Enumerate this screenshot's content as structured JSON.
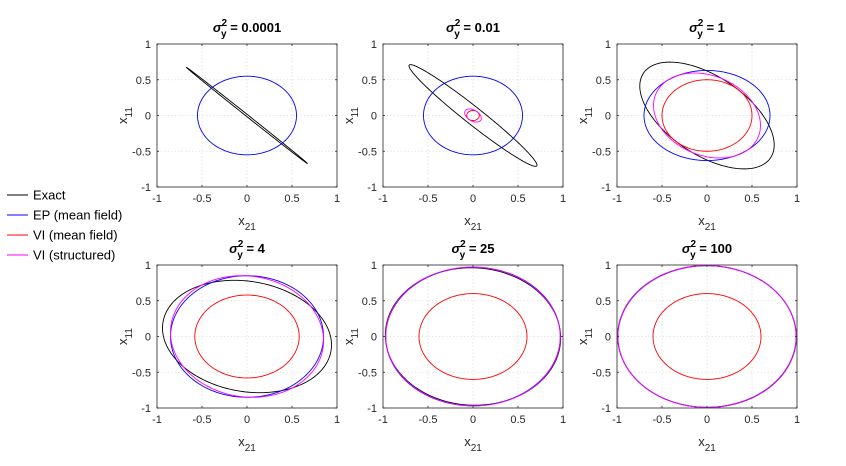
{
  "legend": {
    "placement": "left",
    "entries": [
      {
        "label": "Exact",
        "color": "#000000"
      },
      {
        "label": "EP (mean field)",
        "color": "#0000ff"
      },
      {
        "label": "VI (mean field)",
        "color": "#ff0000"
      },
      {
        "label": "VI (structured)",
        "color": "#ff00ff"
      }
    ]
  },
  "chart_data": [
    {
      "type": "line",
      "title": {
        "main": "σ",
        "sup": "2",
        "sub": "y",
        "rest": " = 0.0001"
      },
      "xlabel": {
        "main": "x",
        "sub": "21"
      },
      "ylabel": {
        "main": "x",
        "sub": "11"
      },
      "xlim": [
        -1,
        1
      ],
      "ylim": [
        -1,
        1
      ],
      "grid": true,
      "xticks": [
        "-1",
        "-0.5",
        "0",
        "0.5",
        "1"
      ],
      "yticks": [
        "-1",
        "-0.5",
        "0",
        "0.5",
        "1"
      ],
      "series": [
        {
          "name": "Exact",
          "color": "#000000",
          "ellipse": {
            "cx": 0,
            "cy": 0,
            "a": 0.95,
            "b": 0.012,
            "angle_deg": -45
          }
        },
        {
          "name": "EP (mean field)",
          "color": "#0000ff",
          "ellipse": {
            "cx": 0,
            "cy": 0,
            "a": 0.55,
            "b": 0.55,
            "angle_deg": 0
          }
        }
      ]
    },
    {
      "type": "line",
      "title": {
        "main": "σ",
        "sup": "2",
        "sub": "y",
        "rest": " = 0.01"
      },
      "xlabel": {
        "main": "x",
        "sub": "21"
      },
      "ylabel": {
        "main": "x",
        "sub": "11"
      },
      "xlim": [
        -1,
        1
      ],
      "ylim": [
        -1,
        1
      ],
      "grid": true,
      "xticks": [
        "-1",
        "-0.5",
        "0",
        "0.5",
        "1"
      ],
      "yticks": [
        "-1",
        "-0.5",
        "0",
        "0.5",
        "1"
      ],
      "series": [
        {
          "name": "Exact",
          "color": "#000000",
          "ellipse": {
            "cx": 0,
            "cy": 0,
            "a": 1.0,
            "b": 0.11,
            "angle_deg": -45
          }
        },
        {
          "name": "EP (mean field)",
          "color": "#0000ff",
          "ellipse": {
            "cx": 0,
            "cy": 0,
            "a": 0.55,
            "b": 0.55,
            "angle_deg": 0
          }
        },
        {
          "name": "VI (mean field)",
          "color": "#ff0000",
          "ellipse": {
            "cx": 0,
            "cy": 0,
            "a": 0.07,
            "b": 0.07,
            "angle_deg": 0
          }
        },
        {
          "name": "VI (structured)",
          "color": "#ff00ff",
          "ellipse": {
            "cx": 0,
            "cy": 0,
            "a": 0.11,
            "b": 0.07,
            "angle_deg": -45
          }
        }
      ]
    },
    {
      "type": "line",
      "title": {
        "main": "σ",
        "sup": "2",
        "sub": "y",
        "rest": " = 1"
      },
      "xlabel": {
        "main": "x",
        "sub": "21"
      },
      "ylabel": {
        "main": "x",
        "sub": "11"
      },
      "xlim": [
        -1,
        1
      ],
      "ylim": [
        -1,
        1
      ],
      "grid": true,
      "xticks": [
        "-1",
        "-0.5",
        "0",
        "0.5",
        "1"
      ],
      "yticks": [
        "-1",
        "-0.5",
        "0",
        "0.5",
        "1"
      ],
      "series": [
        {
          "name": "Exact",
          "color": "#000000",
          "ellipse": {
            "cx": 0,
            "cy": 0,
            "a": 0.93,
            "b": 0.5,
            "angle_deg": -45
          }
        },
        {
          "name": "EP (mean field)",
          "color": "#0000ff",
          "ellipse": {
            "cx": 0,
            "cy": 0,
            "a": 0.7,
            "b": 0.63,
            "angle_deg": 0
          }
        },
        {
          "name": "VI (mean field)",
          "color": "#ff0000",
          "ellipse": {
            "cx": 0,
            "cy": 0,
            "a": 0.5,
            "b": 0.5,
            "angle_deg": 0
          }
        },
        {
          "name": "VI (structured)",
          "color": "#ff00ff",
          "ellipse": {
            "cx": 0,
            "cy": 0,
            "a": 0.66,
            "b": 0.52,
            "angle_deg": -45
          }
        }
      ]
    },
    {
      "type": "line",
      "title": {
        "main": "σ",
        "sup": "2",
        "sub": "y",
        "rest": " = 4"
      },
      "xlabel": {
        "main": "x",
        "sub": "21"
      },
      "ylabel": {
        "main": "x",
        "sub": "11"
      },
      "xlim": [
        -1,
        1
      ],
      "ylim": [
        -1,
        1
      ],
      "grid": true,
      "xticks": [
        "-1",
        "-0.5",
        "0",
        "0.5",
        "1"
      ],
      "yticks": [
        "-1",
        "-0.5",
        "0",
        "0.5",
        "1"
      ],
      "series": [
        {
          "name": "Exact",
          "color": "#000000",
          "ellipse": {
            "cx": 0,
            "cy": 0,
            "a": 0.96,
            "b": 0.76,
            "angle_deg": -20
          }
        },
        {
          "name": "EP (mean field)",
          "color": "#0000ff",
          "ellipse": {
            "cx": 0,
            "cy": 0,
            "a": 0.85,
            "b": 0.85,
            "angle_deg": 0
          }
        },
        {
          "name": "VI (mean field)",
          "color": "#ff0000",
          "ellipse": {
            "cx": 0,
            "cy": 0,
            "a": 0.58,
            "b": 0.58,
            "angle_deg": 0
          }
        },
        {
          "name": "VI (structured)",
          "color": "#ff00ff",
          "ellipse": {
            "cx": 0,
            "cy": 0,
            "a": 0.88,
            "b": 0.82,
            "angle_deg": -45
          }
        }
      ]
    },
    {
      "type": "line",
      "title": {
        "main": "σ",
        "sup": "2",
        "sub": "y",
        "rest": " = 25"
      },
      "xlabel": {
        "main": "x",
        "sub": "21"
      },
      "ylabel": {
        "main": "x",
        "sub": "11"
      },
      "xlim": [
        -1,
        1
      ],
      "ylim": [
        -1,
        1
      ],
      "grid": true,
      "xticks": [
        "-1",
        "-0.5",
        "0",
        "0.5",
        "1"
      ],
      "yticks": [
        "-1",
        "-0.5",
        "0",
        "0.5",
        "1"
      ],
      "series": [
        {
          "name": "Exact",
          "color": "#000000",
          "ellipse": {
            "cx": 0,
            "cy": 0,
            "a": 0.98,
            "b": 0.955,
            "angle_deg": -30
          }
        },
        {
          "name": "EP (mean field)",
          "color": "#0000ff",
          "ellipse": {
            "cx": 0,
            "cy": 0,
            "a": 0.97,
            "b": 0.97,
            "angle_deg": 0
          }
        },
        {
          "name": "VI (mean field)",
          "color": "#ff0000",
          "ellipse": {
            "cx": 0,
            "cy": 0,
            "a": 0.6,
            "b": 0.6,
            "angle_deg": 0
          }
        },
        {
          "name": "VI (structured)",
          "color": "#ff00ff",
          "ellipse": {
            "cx": 0,
            "cy": 0,
            "a": 0.975,
            "b": 0.965,
            "angle_deg": -45
          }
        }
      ]
    },
    {
      "type": "line",
      "title": {
        "main": "σ",
        "sup": "2",
        "sub": "y",
        "rest": " = 100"
      },
      "xlabel": {
        "main": "x",
        "sub": "21"
      },
      "ylabel": {
        "main": "x",
        "sub": "11"
      },
      "xlim": [
        -1,
        1
      ],
      "ylim": [
        -1,
        1
      ],
      "grid": true,
      "xticks": [
        "-1",
        "-0.5",
        "0",
        "0.5",
        "1"
      ],
      "yticks": [
        "-1",
        "-0.5",
        "0",
        "0.5",
        "1"
      ],
      "series": [
        {
          "name": "Exact",
          "color": "#000000",
          "ellipse": {
            "cx": 0,
            "cy": 0,
            "a": 0.995,
            "b": 0.99,
            "angle_deg": -45
          }
        },
        {
          "name": "EP (mean field)",
          "color": "#0000ff",
          "ellipse": {
            "cx": 0,
            "cy": 0,
            "a": 0.99,
            "b": 0.99,
            "angle_deg": 0
          }
        },
        {
          "name": "VI (mean field)",
          "color": "#ff0000",
          "ellipse": {
            "cx": 0,
            "cy": 0,
            "a": 0.6,
            "b": 0.6,
            "angle_deg": 0
          }
        },
        {
          "name": "VI (structured)",
          "color": "#ff00ff",
          "ellipse": {
            "cx": 0,
            "cy": 0,
            "a": 0.993,
            "b": 0.99,
            "angle_deg": -45
          }
        }
      ]
    }
  ]
}
